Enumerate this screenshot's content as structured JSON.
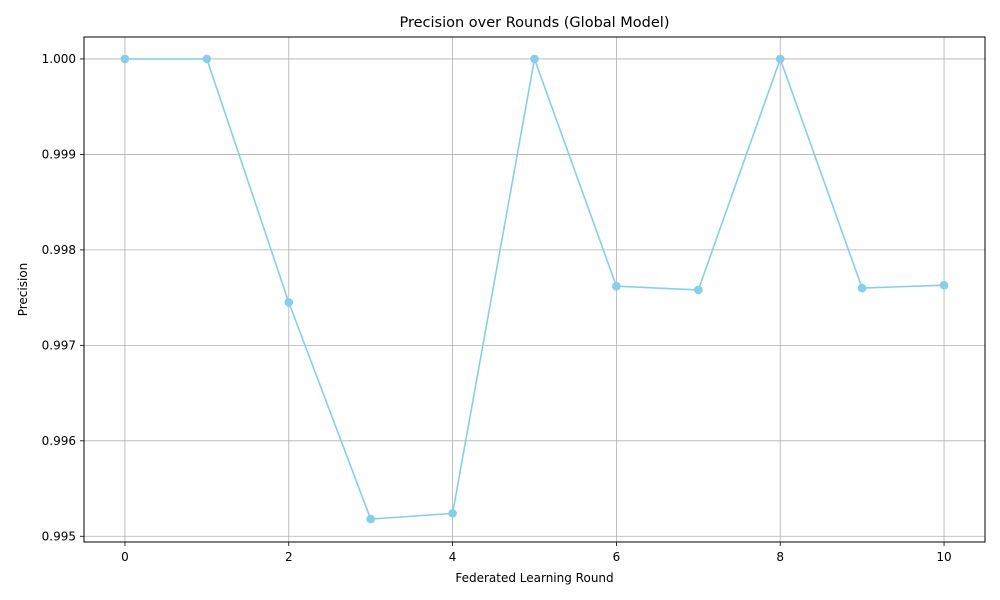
{
  "chart_data": {
    "type": "line",
    "title": "Precision over Rounds (Global Model)",
    "xlabel": "Federated Learning Round",
    "ylabel": "Precision",
    "x": [
      0,
      1,
      2,
      3,
      4,
      5,
      6,
      7,
      8,
      9,
      10
    ],
    "series": [
      {
        "values": [
          1.0,
          1.0,
          0.99745,
          0.99518,
          0.99524,
          1.0,
          0.99762,
          0.99758,
          1.0,
          0.9976,
          0.99763
        ],
        "color": "#87CEEB",
        "marker": "circle"
      }
    ],
    "xlim": [
      -0.5,
      10.5
    ],
    "ylim": [
      0.99494,
      1.00023
    ],
    "xticks": [
      0,
      2,
      4,
      6,
      8,
      10
    ],
    "xtick_labels": [
      "0",
      "2",
      "4",
      "6",
      "8",
      "10"
    ],
    "yticks": [
      0.995,
      0.996,
      0.997,
      0.998,
      0.999,
      1.0
    ],
    "ytick_labels": [
      "0.995",
      "0.996",
      "0.997",
      "0.998",
      "0.999",
      "1.000"
    ],
    "grid": true
  }
}
